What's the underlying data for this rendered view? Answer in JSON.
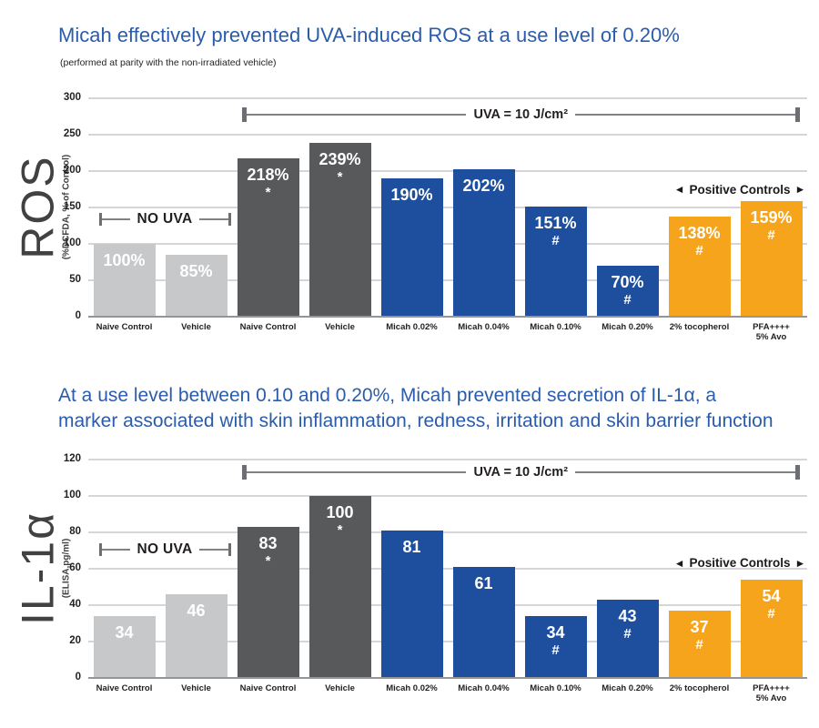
{
  "colors": {
    "title_blue": "#2B5CAB",
    "bar_light_gray": "#C7C8CA",
    "bar_dark_gray": "#58595B",
    "bar_blue": "#1E4F9E",
    "bar_orange": "#F7A41D",
    "gridline": "#D5D6D8",
    "axis_line": "#939598",
    "bracket_line": "#808285",
    "text_dark": "#231F20"
  },
  "chart_data": [
    {
      "type": "bar",
      "title": "Micah effectively prevented UVA-induced ROS at a use level of 0.20%",
      "subtitle": "(performed at parity with the non-irradiated vehicle)",
      "ylabel_main": "ROS",
      "ylabel_sub": "(%DCFDA, % of Control)",
      "ylim": [
        0,
        300
      ],
      "ytick_step": 50,
      "yticks": [
        0,
        50,
        100,
        150,
        200,
        250,
        300
      ],
      "grid": true,
      "legend": "none",
      "categories": [
        "Naive Control",
        "Vehicle",
        "Naive Control",
        "Vehicle",
        "Micah 0.02%",
        "Micah 0.04%",
        "Micah 0.10%",
        "Micah 0.20%",
        "2% tocopherol",
        "PFA++++\n5% Avo"
      ],
      "values": [
        100,
        85,
        218,
        239,
        190,
        202,
        151,
        70,
        138,
        159
      ],
      "value_labels": [
        "100%",
        "85%",
        "218%",
        "239%",
        "190%",
        "202%",
        "151%",
        "70%",
        "138%",
        "159%"
      ],
      "symbols": [
        "",
        "",
        "*",
        "*",
        "",
        "",
        "#",
        "#",
        "#",
        "#"
      ],
      "bar_colors": [
        "light_gray",
        "light_gray",
        "dark_gray",
        "dark_gray",
        "blue",
        "blue",
        "blue",
        "blue",
        "orange",
        "orange"
      ],
      "annotations": [
        {
          "kind": "bracket",
          "style": "small",
          "label": "NO UVA",
          "from_bar": 0,
          "to_bar": 1,
          "y_value": 135
        },
        {
          "kind": "bracket",
          "style": "big",
          "label": "UVA = 10 J/cm²",
          "from_bar": 2,
          "to_bar": 9,
          "to_edge": true,
          "y_value": 277
        },
        {
          "kind": "arrows",
          "label": "Positive Controls",
          "from_bar": 8,
          "to_bar": 9,
          "y_value": 174
        }
      ]
    },
    {
      "type": "bar",
      "title_lines": [
        "At a use level between 0.10 and 0.20%, Micah prevented secretion of IL-1α, a",
        "marker associated with skin inflammation, redness, irritation and skin barrier function"
      ],
      "ylabel_main": "IL-1α",
      "ylabel_sub": "(ELISA,pg/ml)",
      "ylim": [
        0,
        120
      ],
      "ytick_step": 20,
      "yticks": [
        0,
        20,
        40,
        60,
        80,
        100,
        120
      ],
      "grid": true,
      "legend": "none",
      "categories": [
        "Naive Control",
        "Vehicle",
        "Naive Control",
        "Vehicle",
        "Micah 0.02%",
        "Micah 0.04%",
        "Micah 0.10%",
        "Micah 0.20%",
        "2% tocopherol",
        "PFA++++\n5% Avo"
      ],
      "values": [
        34,
        46,
        83,
        100,
        81,
        61,
        34,
        43,
        37,
        54
      ],
      "value_labels": [
        "34",
        "46",
        "83",
        "100",
        "81",
        "61",
        "34",
        "43",
        "37",
        "54"
      ],
      "symbols": [
        "",
        "",
        "*",
        "*",
        "",
        "",
        "#",
        "#",
        "#",
        "#"
      ],
      "bar_colors": [
        "light_gray",
        "light_gray",
        "dark_gray",
        "dark_gray",
        "blue",
        "blue",
        "blue",
        "blue",
        "orange",
        "orange"
      ],
      "annotations": [
        {
          "kind": "bracket",
          "style": "small",
          "label": "NO UVA",
          "from_bar": 0,
          "to_bar": 1,
          "y_value": 71
        },
        {
          "kind": "bracket",
          "style": "big",
          "label": "UVA = 10 J/cm²",
          "from_bar": 2,
          "to_bar": 9,
          "to_edge": true,
          "y_value": 113
        },
        {
          "kind": "arrows",
          "label": "Positive Controls",
          "from_bar": 8,
          "to_bar": 9,
          "y_value": 63
        }
      ]
    }
  ]
}
